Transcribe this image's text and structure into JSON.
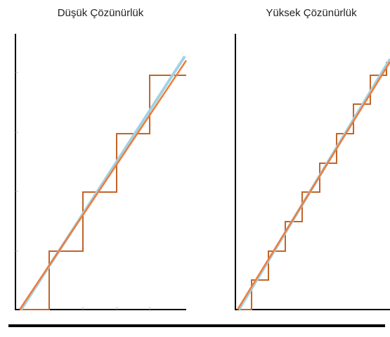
{
  "panels": [
    {
      "title": "Düşük Çözünürlük"
    },
    {
      "title": "Yüksek Çözünürlük"
    }
  ]
}
